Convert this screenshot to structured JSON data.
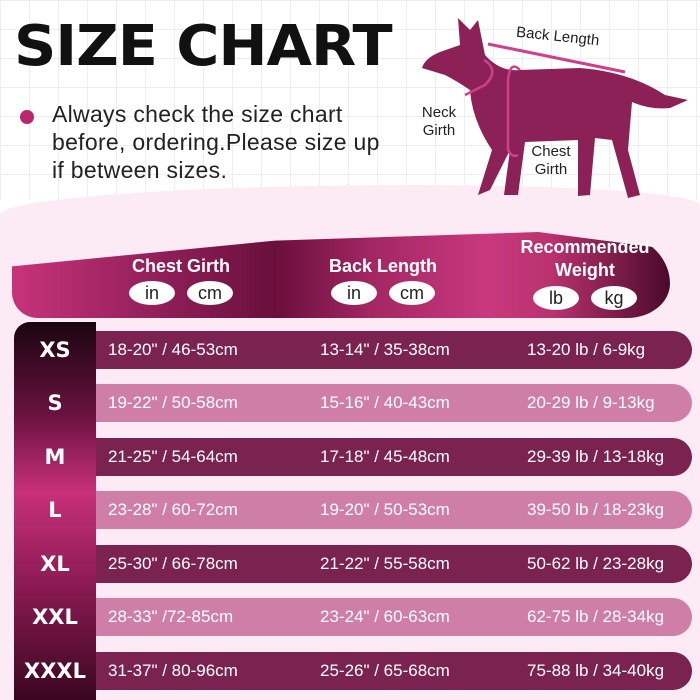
{
  "title": "SIZE CHART",
  "note": "Always check the size chart before, ordering.Please size up if between sizes.",
  "diagram": {
    "back_length": "Back Length",
    "neck_girth": "Neck Girth",
    "chest_girth": "Chest Girth"
  },
  "colors": {
    "brand": "#8a1d55",
    "accent": "#c9387d",
    "light_row": "#cf7ea8",
    "dark_row": "#7a2250"
  },
  "header": {
    "chest": {
      "label": "Chest Girth",
      "units": [
        "in",
        "cm"
      ]
    },
    "back": {
      "label": "Back Length",
      "units": [
        "in",
        "cm"
      ]
    },
    "weight": {
      "label": "Recommended Weight",
      "units": [
        "lb",
        "kg"
      ]
    }
  },
  "rows": [
    {
      "size": "XS",
      "chest": "18-20\" / 46-53cm",
      "back": "13-14\" / 35-38cm",
      "weight": "13-20 lb / 6-9kg"
    },
    {
      "size": "S",
      "chest": "19-22\" / 50-58cm",
      "back": "15-16\" / 40-43cm",
      "weight": "20-29 lb / 9-13kg"
    },
    {
      "size": "M",
      "chest": "21-25\" / 54-64cm",
      "back": "17-18\" / 45-48cm",
      "weight": "29-39 lb / 13-18kg"
    },
    {
      "size": "L",
      "chest": "23-28\" / 60-72cm",
      "back": "19-20\" / 50-53cm",
      "weight": "39-50 lb / 18-23kg"
    },
    {
      "size": "XL",
      "chest": "25-30\" / 66-78cm",
      "back": "21-22\" / 55-58cm",
      "weight": "50-62 lb / 23-28kg"
    },
    {
      "size": "XXL",
      "chest": "28-33\" /72-85cm",
      "back": "23-24\" / 60-63cm",
      "weight": "62-75 lb / 28-34kg"
    },
    {
      "size": "XXXL",
      "chest": "31-37\" / 80-96cm",
      "back": "25-26\" / 65-68cm",
      "weight": "75-88 lb / 34-40kg"
    }
  ]
}
